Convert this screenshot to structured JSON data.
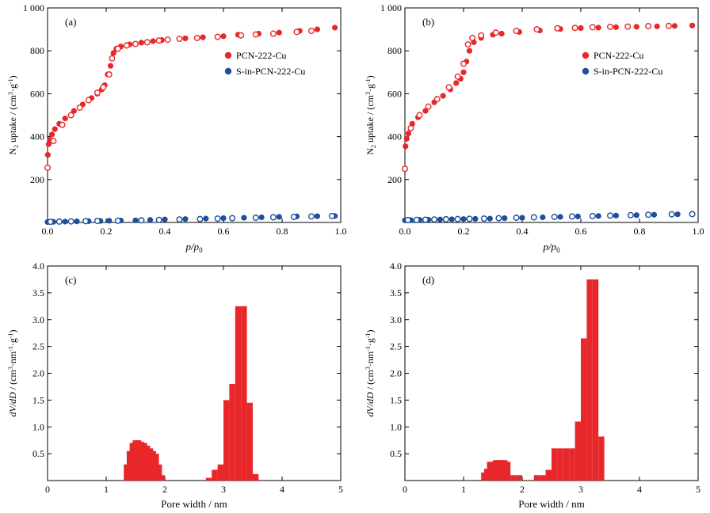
{
  "colors": {
    "red": "#e8272a",
    "blue": "#1f4e9c",
    "axis": "#000000"
  },
  "chart_data": [
    {
      "panel": "(a)",
      "type": "scatter",
      "xlabel": "p/p0",
      "ylabel": "N2 uptake / (cm3·g-1)",
      "xlim": [
        0,
        1.0
      ],
      "ylim": [
        0,
        1000
      ],
      "xticks": [
        "0.0",
        "0.2",
        "0.4",
        "0.6",
        "0.8",
        "1.0"
      ],
      "yticks": [
        "200",
        "400",
        "600",
        "800",
        "1 000"
      ],
      "legend": {
        "position": "right-middle",
        "entries": [
          "PCN-222-Cu",
          "S-in-PCN-222-Cu"
        ]
      },
      "series": [
        {
          "name": "PCN-222-Cu",
          "color": "red",
          "adsorption": [
            [
              0.001,
              315
            ],
            [
              0.004,
              365
            ],
            [
              0.008,
              385
            ],
            [
              0.015,
              410
            ],
            [
              0.025,
              435
            ],
            [
              0.04,
              460
            ],
            [
              0.06,
              485
            ],
            [
              0.09,
              520
            ],
            [
              0.12,
              550
            ],
            [
              0.15,
              580
            ],
            [
              0.17,
              600
            ],
            [
              0.185,
              620
            ],
            [
              0.195,
              640
            ],
            [
              0.205,
              690
            ],
            [
              0.215,
              730
            ],
            [
              0.225,
              790
            ],
            [
              0.235,
              810
            ],
            [
              0.25,
              820
            ],
            [
              0.28,
              830
            ],
            [
              0.32,
              838
            ],
            [
              0.36,
              845
            ],
            [
              0.39,
              850
            ],
            [
              0.47,
              858
            ],
            [
              0.53,
              863
            ],
            [
              0.6,
              868
            ],
            [
              0.65,
              875
            ],
            [
              0.72,
              880
            ],
            [
              0.79,
              885
            ],
            [
              0.86,
              893
            ],
            [
              0.92,
              900
            ],
            [
              0.98,
              908
            ]
          ],
          "desorption": [
            [
              0.0,
              255
            ],
            [
              0.02,
              380
            ],
            [
              0.05,
              455
            ],
            [
              0.08,
              500
            ],
            [
              0.11,
              535
            ],
            [
              0.14,
              570
            ],
            [
              0.17,
              605
            ],
            [
              0.19,
              630
            ],
            [
              0.21,
              690
            ],
            [
              0.22,
              765
            ],
            [
              0.24,
              810
            ],
            [
              0.27,
              825
            ],
            [
              0.3,
              832
            ],
            [
              0.34,
              840
            ],
            [
              0.38,
              848
            ],
            [
              0.41,
              852
            ],
            [
              0.45,
              856
            ],
            [
              0.51,
              860
            ],
            [
              0.58,
              865
            ],
            [
              0.66,
              872
            ],
            [
              0.71,
              876
            ],
            [
              0.77,
              880
            ],
            [
              0.85,
              888
            ],
            [
              0.9,
              893
            ]
          ]
        },
        {
          "name": "S-in-PCN-222-Cu",
          "color": "blue",
          "adsorption": [
            [
              0.0,
              2
            ],
            [
              0.02,
              3
            ],
            [
              0.06,
              4
            ],
            [
              0.1,
              5
            ],
            [
              0.14,
              6
            ],
            [
              0.18,
              7
            ],
            [
              0.21,
              8
            ],
            [
              0.25,
              9
            ],
            [
              0.3,
              10
            ],
            [
              0.35,
              12
            ],
            [
              0.4,
              14
            ],
            [
              0.47,
              16
            ],
            [
              0.54,
              18
            ],
            [
              0.6,
              20
            ],
            [
              0.67,
              22
            ],
            [
              0.73,
              24
            ],
            [
              0.79,
              26
            ],
            [
              0.85,
              28
            ],
            [
              0.92,
              29
            ],
            [
              0.98,
              30
            ]
          ],
          "desorption": [
            [
              0.01,
              3
            ],
            [
              0.04,
              4
            ],
            [
              0.08,
              5
            ],
            [
              0.13,
              6
            ],
            [
              0.17,
              7
            ],
            [
              0.24,
              8
            ],
            [
              0.32,
              10
            ],
            [
              0.38,
              12
            ],
            [
              0.45,
              14
            ],
            [
              0.52,
              16
            ],
            [
              0.58,
              18
            ],
            [
              0.63,
              20
            ],
            [
              0.71,
              22
            ],
            [
              0.77,
              24
            ],
            [
              0.84,
              26
            ],
            [
              0.9,
              28
            ],
            [
              0.97,
              30
            ]
          ]
        }
      ]
    },
    {
      "panel": "(b)",
      "type": "scatter",
      "xlabel": "p/p0",
      "ylabel": "N2 uptake / (cm3·g-1)",
      "xlim": [
        0,
        1.0
      ],
      "ylim": [
        0,
        1000
      ],
      "xticks": [
        "0.0",
        "0.2",
        "0.4",
        "0.6",
        "0.8",
        "1.0"
      ],
      "yticks": [
        "200",
        "400",
        "600",
        "800",
        "1 000"
      ],
      "legend": {
        "position": "right-middle",
        "entries": [
          "PCN-222-Cu",
          "S-in-PCN-222-Cu"
        ]
      },
      "series": [
        {
          "name": "PCN-222-Cu",
          "color": "red",
          "adsorption": [
            [
              0.002,
              355
            ],
            [
              0.006,
              390
            ],
            [
              0.012,
              415
            ],
            [
              0.025,
              460
            ],
            [
              0.045,
              490
            ],
            [
              0.07,
              520
            ],
            [
              0.1,
              560
            ],
            [
              0.13,
              590
            ],
            [
              0.155,
              620
            ],
            [
              0.175,
              650
            ],
            [
              0.19,
              670
            ],
            [
              0.2,
              700
            ],
            [
              0.21,
              750
            ],
            [
              0.22,
              800
            ],
            [
              0.235,
              840
            ],
            [
              0.26,
              860
            ],
            [
              0.3,
              875
            ],
            [
              0.33,
              880
            ],
            [
              0.39,
              888
            ],
            [
              0.46,
              895
            ],
            [
              0.53,
              902
            ],
            [
              0.6,
              906
            ],
            [
              0.66,
              908
            ],
            [
              0.72,
              910
            ],
            [
              0.79,
              912
            ],
            [
              0.86,
              914
            ],
            [
              0.92,
              916
            ],
            [
              0.98,
              918
            ]
          ],
          "desorption": [
            [
              0.0,
              250
            ],
            [
              0.02,
              440
            ],
            [
              0.05,
              500
            ],
            [
              0.08,
              540
            ],
            [
              0.11,
              575
            ],
            [
              0.15,
              630
            ],
            [
              0.18,
              680
            ],
            [
              0.2,
              740
            ],
            [
              0.215,
              830
            ],
            [
              0.23,
              860
            ],
            [
              0.26,
              872
            ],
            [
              0.31,
              885
            ],
            [
              0.38,
              893
            ],
            [
              0.45,
              900
            ],
            [
              0.52,
              905
            ],
            [
              0.58,
              907
            ],
            [
              0.64,
              910
            ],
            [
              0.7,
              912
            ],
            [
              0.76,
              913
            ],
            [
              0.83,
              915
            ],
            [
              0.9,
              916
            ]
          ]
        },
        {
          "name": "S-in-PCN-222-Cu",
          "color": "blue",
          "adsorption": [
            [
              0.0,
              10
            ],
            [
              0.02,
              11
            ],
            [
              0.05,
              12
            ],
            [
              0.08,
              13
            ],
            [
              0.12,
              14
            ],
            [
              0.16,
              15
            ],
            [
              0.2,
              16
            ],
            [
              0.24,
              17
            ],
            [
              0.29,
              18
            ],
            [
              0.34,
              20
            ],
            [
              0.4,
              22
            ],
            [
              0.47,
              24
            ],
            [
              0.53,
              26
            ],
            [
              0.59,
              28
            ],
            [
              0.66,
              30
            ],
            [
              0.72,
              32
            ],
            [
              0.79,
              34
            ],
            [
              0.85,
              36
            ],
            [
              0.93,
              38
            ]
          ],
          "desorption": [
            [
              0.01,
              11
            ],
            [
              0.04,
              12
            ],
            [
              0.07,
              13
            ],
            [
              0.1,
              14
            ],
            [
              0.14,
              15
            ],
            [
              0.18,
              16
            ],
            [
              0.22,
              17
            ],
            [
              0.27,
              18
            ],
            [
              0.32,
              20
            ],
            [
              0.38,
              22
            ],
            [
              0.44,
              24
            ],
            [
              0.51,
              26
            ],
            [
              0.57,
              28
            ],
            [
              0.64,
              30
            ],
            [
              0.7,
              32
            ],
            [
              0.77,
              34
            ],
            [
              0.83,
              36
            ],
            [
              0.91,
              38
            ],
            [
              0.98,
              39
            ]
          ]
        }
      ]
    },
    {
      "panel": "(c)",
      "type": "bar",
      "xlabel": "Pore width / nm",
      "ylabel": "dV/dD / (cm3·nm-1·g-1)",
      "xlim": [
        0,
        5
      ],
      "ylim": [
        0,
        4.0
      ],
      "xticks": [
        "0",
        "1",
        "2",
        "3",
        "4",
        "5"
      ],
      "yticks": [
        "0.5",
        "1.0",
        "1.5",
        "2.0",
        "2.5",
        "3.0",
        "3.5",
        "4.0"
      ],
      "color": "red",
      "bin_width": 0.1,
      "bins": [
        [
          1.3,
          0.3
        ],
        [
          1.35,
          0.55
        ],
        [
          1.4,
          0.7
        ],
        [
          1.45,
          0.75
        ],
        [
          1.5,
          0.75
        ],
        [
          1.55,
          0.72
        ],
        [
          1.6,
          0.7
        ],
        [
          1.65,
          0.65
        ],
        [
          1.7,
          0.6
        ],
        [
          1.75,
          0.55
        ],
        [
          1.8,
          0.5
        ],
        [
          1.85,
          0.3
        ],
        [
          1.9,
          0.1
        ],
        [
          2.7,
          0.05
        ],
        [
          2.8,
          0.2
        ],
        [
          2.9,
          0.3
        ],
        [
          3.0,
          1.5
        ],
        [
          3.1,
          1.8
        ],
        [
          3.2,
          3.25
        ],
        [
          3.3,
          3.25
        ],
        [
          3.4,
          1.45
        ],
        [
          3.5,
          0.12
        ]
      ]
    },
    {
      "panel": "(d)",
      "type": "bar",
      "xlabel": "Pore width / nm",
      "ylabel": "dV/dD / (cm3·nm-1·g-1)",
      "xlim": [
        0,
        5
      ],
      "ylim": [
        0,
        4.0
      ],
      "xticks": [
        "0",
        "1",
        "2",
        "3",
        "4",
        "5"
      ],
      "yticks": [
        "0.5",
        "1.0",
        "1.5",
        "2.0",
        "2.5",
        "3.0",
        "3.5",
        "4.0"
      ],
      "color": "red",
      "bin_width": 0.1,
      "bins": [
        [
          1.3,
          0.15
        ],
        [
          1.35,
          0.22
        ],
        [
          1.4,
          0.35
        ],
        [
          1.45,
          0.35
        ],
        [
          1.5,
          0.38
        ],
        [
          1.55,
          0.38
        ],
        [
          1.6,
          0.38
        ],
        [
          1.65,
          0.38
        ],
        [
          1.7,
          0.35
        ],
        [
          1.8,
          0.1
        ],
        [
          1.9,
          0.1
        ],
        [
          2.2,
          0.1
        ],
        [
          2.3,
          0.1
        ],
        [
          2.4,
          0.2
        ],
        [
          2.5,
          0.6
        ],
        [
          2.6,
          0.6
        ],
        [
          2.7,
          0.6
        ],
        [
          2.8,
          0.6
        ],
        [
          2.9,
          1.1
        ],
        [
          3.0,
          2.65
        ],
        [
          3.1,
          3.75
        ],
        [
          3.2,
          3.75
        ],
        [
          3.3,
          0.82
        ]
      ]
    }
  ]
}
